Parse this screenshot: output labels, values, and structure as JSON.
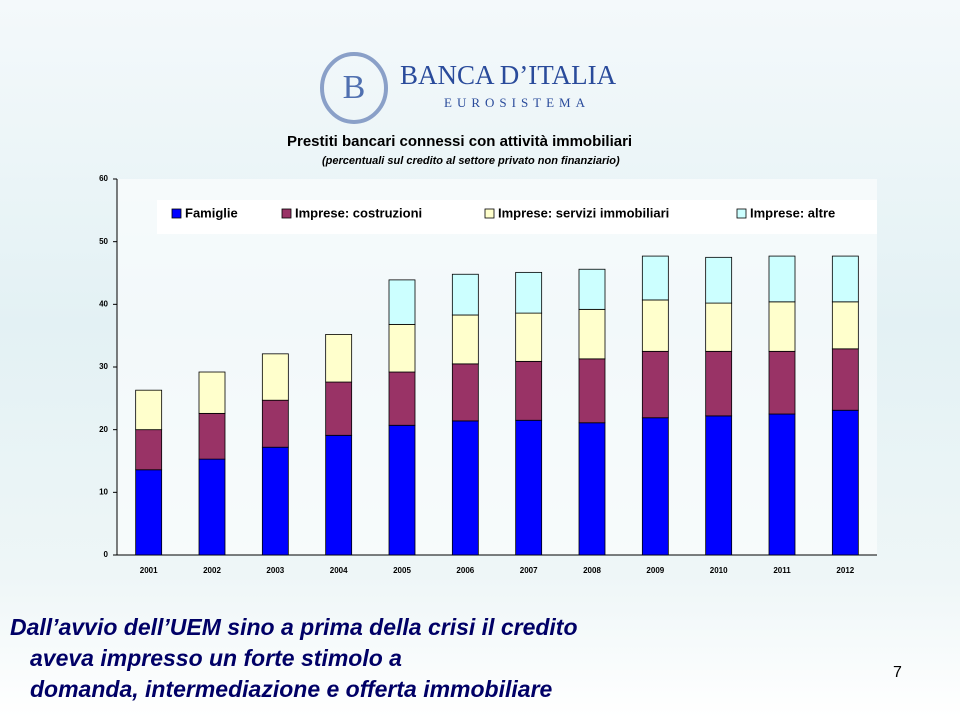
{
  "logo": {
    "name": "BANCA D’ITALIA",
    "subtitle": "EUROSISTEMA"
  },
  "chart_data": {
    "type": "bar",
    "stacked": true,
    "title": "Prestiti bancari connessi con attività immobiliari",
    "subtitle": "(percentuali sul credito al settore privato non finanziario)",
    "categories": [
      "2001",
      "2002",
      "2003",
      "2004",
      "2005",
      "2006",
      "2007",
      "2008",
      "2009",
      "2010",
      "2011",
      "2012"
    ],
    "series": [
      {
        "name": "Famiglie",
        "color": "#0000ff",
        "values": [
          13.6,
          15.3,
          17.2,
          19.1,
          20.7,
          21.4,
          21.5,
          21.1,
          21.9,
          22.2,
          22.5,
          23.1
        ]
      },
      {
        "name": "Imprese: costruzioni",
        "color": "#993366",
        "values": [
          6.4,
          7.3,
          7.5,
          8.5,
          8.5,
          9.1,
          9.4,
          10.2,
          10.6,
          10.3,
          10.0,
          9.8
        ]
      },
      {
        "name": "Imprese: servizi immobiliari",
        "color": "#ffffcc",
        "values": [
          6.3,
          6.6,
          7.4,
          7.6,
          7.6,
          7.8,
          7.7,
          7.9,
          8.2,
          7.7,
          7.9,
          7.5
        ]
      },
      {
        "name": "Imprese: altre",
        "color": "#ccffff",
        "values": [
          0,
          0,
          0,
          0,
          7.1,
          6.5,
          6.5,
          6.4,
          7.0,
          7.3,
          7.3,
          7.3
        ]
      }
    ],
    "ylim": [
      0,
      60
    ],
    "yticks": [
      0,
      10,
      20,
      30,
      40,
      50,
      60
    ],
    "legend": "top"
  },
  "slide": {
    "title": "Dall’avvio dell’UEM sino a prima della crisi il credito aveva impresso un forte stimolo a domanda, intermediazione e offerta immobiliare",
    "page": "7"
  }
}
